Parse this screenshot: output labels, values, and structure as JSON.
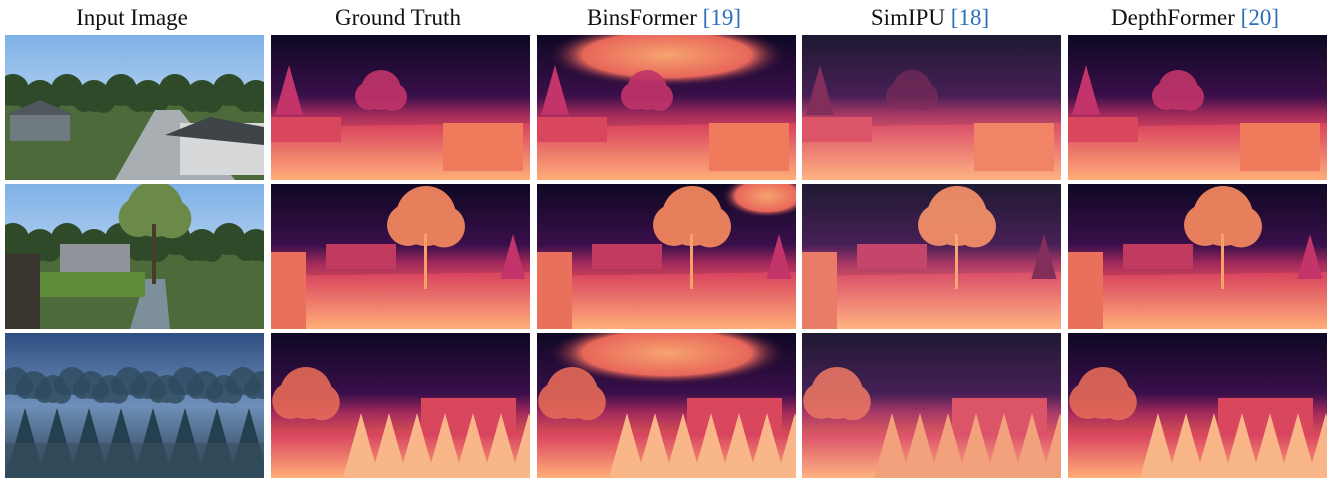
{
  "columns": [
    {
      "title": "Input Image",
      "ref": ""
    },
    {
      "title": "Ground Truth",
      "ref": ""
    },
    {
      "title": "BinsFormer ",
      "ref": "[19]"
    },
    {
      "title": "SimIPU ",
      "ref": "[18]"
    },
    {
      "title": "DepthFormer ",
      "ref": "[20]"
    }
  ],
  "rows": [
    {
      "scene": "suburban-street-with-houses"
    },
    {
      "scene": "flooded-street-with-tree"
    },
    {
      "scene": "foggy-forest-with-house"
    }
  ],
  "palette": {
    "near": "#f7d09a",
    "mid": "#e9585a",
    "far": "#120a2a",
    "sky": "#2a4e86"
  }
}
